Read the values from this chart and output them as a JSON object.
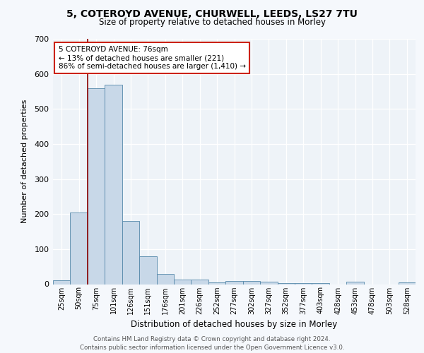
{
  "title1": "5, COTEROYD AVENUE, CHURWELL, LEEDS, LS27 7TU",
  "title2": "Size of property relative to detached houses in Morley",
  "xlabel": "Distribution of detached houses by size in Morley",
  "ylabel": "Number of detached properties",
  "bar_labels": [
    "25sqm",
    "50sqm",
    "75sqm",
    "101sqm",
    "126sqm",
    "151sqm",
    "176sqm",
    "201sqm",
    "226sqm",
    "252sqm",
    "277sqm",
    "302sqm",
    "327sqm",
    "352sqm",
    "377sqm",
    "403sqm",
    "428sqm",
    "453sqm",
    "478sqm",
    "503sqm",
    "528sqm"
  ],
  "bar_values": [
    12,
    205,
    560,
    570,
    180,
    80,
    30,
    14,
    14,
    6,
    10,
    10,
    8,
    3,
    3,
    3,
    0,
    7,
    0,
    0,
    6
  ],
  "bar_color": "#c8d8e8",
  "bar_edge_color": "#5588aa",
  "vline_x_index": 2,
  "vline_color": "#8b0000",
  "annotation_text": "5 COTEROYD AVENUE: 76sqm\n← 13% of detached houses are smaller (221)\n86% of semi-detached houses are larger (1,410) →",
  "annotation_box_facecolor": "#ffffff",
  "annotation_box_edgecolor": "#cc2200",
  "ylim": [
    0,
    700
  ],
  "yticks": [
    0,
    100,
    200,
    300,
    400,
    500,
    600,
    700
  ],
  "footer1": "Contains HM Land Registry data © Crown copyright and database right 2024.",
  "footer2": "Contains public sector information licensed under the Open Government Licence v3.0.",
  "bg_color": "#f5f8fc",
  "plot_bg_color": "#eef3f8",
  "grid_color": "#ffffff",
  "title1_fontsize": 10,
  "title2_fontsize": 8.5,
  "ylabel_fontsize": 8,
  "xlabel_fontsize": 8.5,
  "tick_fontsize": 7,
  "annotation_fontsize": 7.5,
  "footer_fontsize": 6.2
}
